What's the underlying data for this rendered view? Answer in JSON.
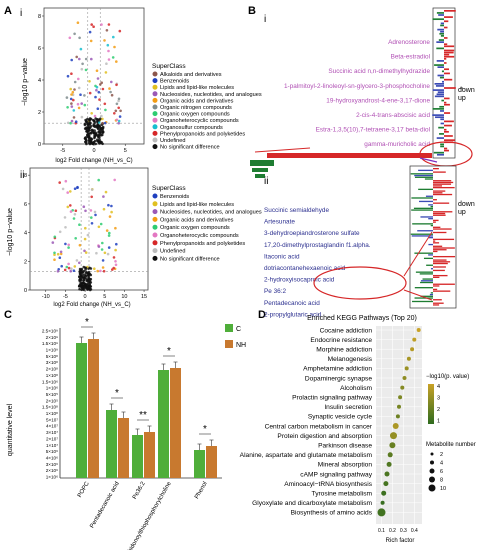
{
  "panels": {
    "A": {
      "label": "A",
      "sub_i": "i",
      "sub_ii": "ii",
      "ylabel": "−log10 p−value",
      "xlabel": "log2 Fold change (NH_vs_C)",
      "i_xticks": [
        "-5",
        "0",
        "5"
      ],
      "i_yticks": [
        "0",
        "2",
        "4",
        "6",
        "8"
      ],
      "ii_xticks": [
        "-10",
        "-5",
        "0",
        "5",
        "10",
        "15"
      ],
      "ii_yticks": [
        "0",
        "2",
        "4",
        "6",
        "8"
      ]
    },
    "B": {
      "label": "B",
      "sub_i": "i",
      "sub_ii": "ii",
      "legend_down": "down",
      "legend_up": "up"
    },
    "C": {
      "label": "C",
      "ylabel": "quantitative level"
    },
    "D": {
      "label": "D",
      "title": "Enriched KEGG Pathways (Top 20)",
      "xlabel": "Rich factor",
      "xticks": [
        "0.1",
        "0.2",
        "0.3",
        "0.4"
      ],
      "legend_pval_title": "−log10(p. value)",
      "legend_pval_ticks": [
        "4",
        "3",
        "2",
        "1"
      ],
      "legend_size_title": "Metabolite number",
      "legend_size_ticks": [
        "2",
        "4",
        "6",
        "8",
        "10"
      ]
    }
  },
  "superclass_i": {
    "title": "SuperClass",
    "items": [
      "Alkaloids and derivatives",
      "Benzenoids",
      "Lipids and lipid-like molecules",
      "Nucleosides, nucleotides, and analogues",
      "Organic acids and derivatives",
      "Organic nitrogen compounds",
      "Organic oxygen compounds",
      "Organoheterocyclic compounds",
      "Organosulfur compounds",
      "Phenylpropanoids and polyketides",
      "Undefined",
      "No significant difference"
    ],
    "colors": [
      "#8c564b",
      "#1f3fbf",
      "#e0c020",
      "#9b59b6",
      "#f39c12",
      "#7f8c8d",
      "#2ecc71",
      "#e377c2",
      "#17becf",
      "#d62728",
      "#bcbcbc",
      "#111111"
    ]
  },
  "superclass_ii": {
    "title": "SuperClass",
    "items": [
      "Benzenoids",
      "Lipids and lipid-like molecules",
      "Nucleosides, nucleotides, and analogues",
      "Organic acids and derivatives",
      "Organic oxygen compounds",
      "Organoheterocyclic compounds",
      "Phenylpropanoids and polyketides",
      "Undefined",
      "No significant difference"
    ],
    "colors": [
      "#1f3fbf",
      "#e0c020",
      "#9b59b6",
      "#f39c12",
      "#2ecc71",
      "#e377c2",
      "#d62728",
      "#bcbcbc",
      "#111111"
    ]
  },
  "metabolites_i": [
    "Adrenosterone",
    "Beta-estradiol",
    "Succinic acid n,n-dimethylhydrazide",
    "1-palmitoyl-2-linoleoyl-sn-glycero-3-phosphocholine",
    "19-hydroxyandrost-4-ene-3,17-dione",
    "2-cis-4-trans-abscisic acid",
    "Estra-1,3,5(10),7-tetraene-3,17 beta-diol",
    "gamma-muricholic acid"
  ],
  "metabolites_ii": [
    "Succinic semialdehyde",
    "Artesunate",
    "3-dehydroepiandrosterone sulfate",
    "17,20-dimethylprostaglandin f1.alpha.",
    "Itaconic acid",
    "dotriacontanehexaenoic acid",
    "2-hydroxyisocaproic acid",
    "Pe 36:2",
    "Pentadecanoic acid",
    "2-propylglutaric acid"
  ],
  "chart_data": [
    {
      "type": "bar",
      "panel": "C",
      "categories": [
        "POPC",
        "Pentadecanoic acid",
        "Pe36:2",
        "Arachidonoylthiophosphorylcholine",
        "Phenol"
      ],
      "series": [
        {
          "name": "C",
          "values": [
            2100000000.0,
            100000000.0,
            1100000.0,
            55000000.0,
            80000000.0
          ]
        },
        {
          "name": "NH",
          "values": [
            2200000000.0,
            75000000.0,
            1200000.0,
            60000000.0,
            90000000.0
          ]
        }
      ],
      "significance": [
        "*",
        "*",
        "**",
        "*",
        "*"
      ],
      "ylabel": "quantitative level",
      "yticks": [
        "2.5×10⁹",
        "2×10⁹",
        "1.5×10⁹",
        "1×10⁹",
        "5×10⁸",
        "3×10⁸",
        "2×10⁸",
        "1×10⁸",
        "1.5×10⁶",
        "1×10⁶",
        "5×10⁵",
        "2×10⁵",
        "1.5×10⁸",
        "1×10⁸",
        "5×10⁷",
        "4×10⁷",
        "3×10⁷",
        "2×10⁷",
        "1×10⁷",
        "5×10⁶",
        "4×10⁶",
        "3×10⁶",
        "2×10⁶",
        "1×10⁶"
      ]
    },
    {
      "type": "scatter",
      "panel": "D",
      "title": "Enriched KEGG Pathways (Top 20)",
      "xlabel": "Rich factor",
      "categories": [
        "Cocaine addiction",
        "Endocrine resistance",
        "Morphine addiction",
        "Melanogenesis",
        "Amphetamine addiction",
        "Dopaminergic synapse",
        "Alcoholism",
        "Prolactin signaling pathway",
        "Insulin secretion",
        "Synaptic vesicle cycle",
        "Central carbon metabolism in cancer",
        "Protein digestion and absorption",
        "Parkinson disease",
        "Alanine, aspartate and glutamate metabolism",
        "Mineral absorption",
        "cAMP signaling pathway",
        "Aminoacyl−tRNA biosynthesis",
        "Tyrosine metabolism",
        "Glyoxylate and dicarboxylate metabolism",
        "Biosynthesis of amino acids"
      ],
      "x": [
        0.44,
        0.4,
        0.38,
        0.35,
        0.33,
        0.31,
        0.29,
        0.27,
        0.26,
        0.25,
        0.23,
        0.21,
        0.2,
        0.18,
        0.17,
        0.15,
        0.14,
        0.12,
        0.11,
        0.1
      ],
      "size": [
        2,
        2,
        2,
        2,
        2,
        2,
        2,
        2,
        2,
        2,
        4,
        5,
        4,
        3,
        3,
        3,
        3,
        3,
        2,
        6
      ],
      "pvalue": [
        4.2,
        4.0,
        3.8,
        3.5,
        3.2,
        3.0,
        2.8,
        2.6,
        2.5,
        2.3,
        3.6,
        3.1,
        2.2,
        1.9,
        1.7,
        1.6,
        1.5,
        1.3,
        1.2,
        1.4
      ]
    }
  ]
}
